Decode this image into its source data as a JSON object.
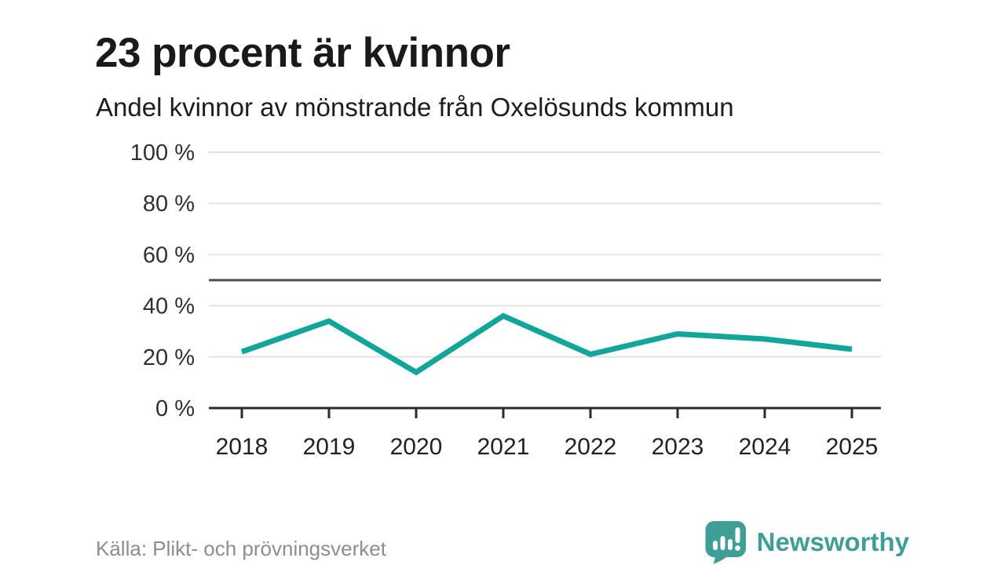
{
  "header": {
    "title": "23 procent är kvinnor",
    "subtitle": "Andel kvinnor av mönstrande från Oxelösunds kommun"
  },
  "chart_data": {
    "type": "line",
    "title": "23 procent är kvinnor",
    "subtitle": "Andel kvinnor av mönstrande från Oxelösunds kommun",
    "x": [
      "2018",
      "2019",
      "2020",
      "2021",
      "2022",
      "2023",
      "2024",
      "2025"
    ],
    "series": [
      {
        "name": "Andel kvinnor av mönstrande",
        "values": [
          22,
          34,
          14,
          36,
          21,
          29,
          27,
          23
        ]
      }
    ],
    "unit": "%",
    "ylim": [
      0,
      100
    ],
    "yticks": [
      0,
      20,
      40,
      60,
      80,
      100
    ],
    "ytick_labels": [
      "0 %",
      "20 %",
      "40 %",
      "60 %",
      "80 %",
      "100 %"
    ],
    "reference_line": 50,
    "grid": true,
    "legend": "none",
    "line_color": "#12a69b"
  },
  "footer": {
    "source": "Källa: Plikt- och prövningsverket",
    "brand_name": "Newsworthy"
  },
  "colors": {
    "accent_teal": "#12a69b",
    "brand_teal": "#3f9e96",
    "grid_line": "#e3e3e3",
    "reference_line": "#4f4f4f",
    "axis_line": "#2b2b2b",
    "title_text": "#1a1a1a",
    "tick_text": "#303030",
    "muted_text": "#8d8d8d"
  },
  "icons": {
    "brand_logo": "newsworthy-bar-chart-bubble-icon"
  }
}
